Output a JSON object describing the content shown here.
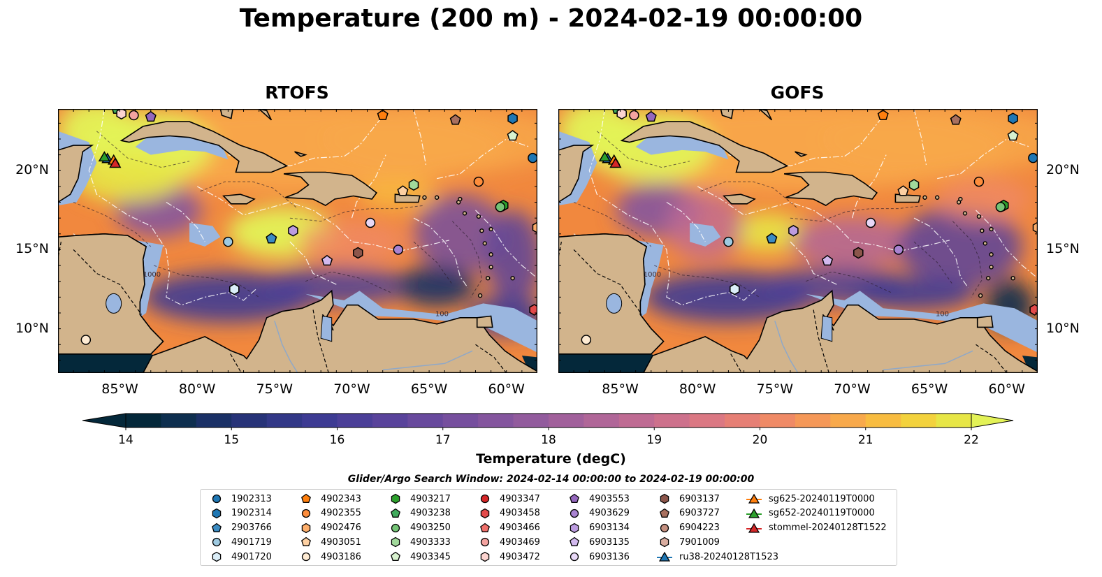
{
  "title": "Temperature (200 m) - 2024-02-19 00:00:00",
  "panels": [
    {
      "id": "rtofs",
      "title": "RTOFS"
    },
    {
      "id": "gofs",
      "title": "GOFS"
    }
  ],
  "map_extent": {
    "lon_min": -89,
    "lon_max": -58,
    "lat_min": 7.2,
    "lat_max": 23.9
  },
  "lon_ticks": [
    {
      "value": -85,
      "label": "85°W"
    },
    {
      "value": -80,
      "label": "80°W"
    },
    {
      "value": -75,
      "label": "75°W"
    },
    {
      "value": -70,
      "label": "70°W"
    },
    {
      "value": -65,
      "label": "65°W"
    },
    {
      "value": -60,
      "label": "60°W"
    }
  ],
  "lat_ticks": [
    {
      "value": 20,
      "label": "20°N"
    },
    {
      "value": 15,
      "label": "15°N"
    },
    {
      "value": 10,
      "label": "10°N"
    }
  ],
  "contour_labels": [
    "100",
    "1000"
  ],
  "colorbar": {
    "label": "Temperature (degC)",
    "min": 14,
    "max": 22,
    "step": 0.5,
    "ticks": [
      "14",
      "15",
      "16",
      "17",
      "18",
      "19",
      "20",
      "21",
      "22"
    ],
    "extend": "both",
    "colors": [
      "#04283a",
      "#0e2f4f",
      "#1a3066",
      "#273378",
      "#323887",
      "#3d3b93",
      "#4b3f98",
      "#59439b",
      "#68499d",
      "#764f9e",
      "#84559e",
      "#925b9d",
      "#a1609b",
      "#b06698",
      "#bf6b93",
      "#cd718c",
      "#db7883",
      "#e67f75",
      "#ef8a66",
      "#f59858",
      "#f8a94b",
      "#f8bc40",
      "#f3d23d",
      "#e7e646",
      "#e3f257"
    ]
  },
  "search_window": "Glider/Argo Search Window: 2024-02-14 00:00:00 to 2024-02-19 00:00:00",
  "legend": [
    {
      "label": "1902313",
      "marker": "circle",
      "color": "#1f77b4"
    },
    {
      "label": "1902314",
      "marker": "hexagon",
      "color": "#1f77b4"
    },
    {
      "label": "2903766",
      "marker": "pentagon",
      "color": "#3b8bc2"
    },
    {
      "label": "4901719",
      "marker": "circle",
      "color": "#9ecae1"
    },
    {
      "label": "4901720",
      "marker": "hexagon",
      "color": "#dbeef8"
    },
    {
      "label": "4902343",
      "marker": "pentagon",
      "color": "#ff7f0e"
    },
    {
      "label": "4902355",
      "marker": "circle",
      "color": "#fd8d3c"
    },
    {
      "label": "4902476",
      "marker": "hexagon",
      "color": "#fdae6b"
    },
    {
      "label": "4903051",
      "marker": "pentagon",
      "color": "#fdd0a2"
    },
    {
      "label": "4903186",
      "marker": "circle",
      "color": "#feebd3"
    },
    {
      "label": "4903217",
      "marker": "hexagon",
      "color": "#2ca02c"
    },
    {
      "label": "4903238",
      "marker": "pentagon",
      "color": "#41ab5d"
    },
    {
      "label": "4903250",
      "marker": "circle",
      "color": "#74c476"
    },
    {
      "label": "4903333",
      "marker": "hexagon",
      "color": "#a1d99b"
    },
    {
      "label": "4903345",
      "marker": "pentagon",
      "color": "#d8f2cf"
    },
    {
      "label": "4903347",
      "marker": "circle",
      "color": "#d62728"
    },
    {
      "label": "4903458",
      "marker": "hexagon",
      "color": "#e34a4a"
    },
    {
      "label": "4903466",
      "marker": "pentagon",
      "color": "#ef6f6a"
    },
    {
      "label": "4903469",
      "marker": "circle",
      "color": "#f4a3a0"
    },
    {
      "label": "4903472",
      "marker": "hexagon",
      "color": "#fcd3cf"
    },
    {
      "label": "4903553",
      "marker": "pentagon",
      "color": "#9467bd"
    },
    {
      "label": "4903629",
      "marker": "circle",
      "color": "#a983d1"
    },
    {
      "label": "6903134",
      "marker": "hexagon",
      "color": "#bc9ce0"
    },
    {
      "label": "6903135",
      "marker": "pentagon",
      "color": "#d2b9ee"
    },
    {
      "label": "6903136",
      "marker": "circle",
      "color": "#e8d8f7"
    },
    {
      "label": "6903137",
      "marker": "hexagon",
      "color": "#8c564b"
    },
    {
      "label": "6903727",
      "marker": "pentagon",
      "color": "#a8705f"
    },
    {
      "label": "6904223",
      "marker": "circle",
      "color": "#c49080"
    },
    {
      "label": "7901009",
      "marker": "hexagon",
      "color": "#d9ada0"
    },
    {
      "label": "ru38-20240128T1523",
      "marker": "triangle-line",
      "color": "#1f77b4"
    },
    {
      "label": "sg625-20240119T0000",
      "marker": "triangle-line",
      "color": "#ff7f0e"
    },
    {
      "label": "sg652-20240119T0000",
      "marker": "triangle-line",
      "color": "#2ca02c"
    },
    {
      "label": "stommel-20240128T1522",
      "marker": "triangle-line",
      "color": "#d62728"
    }
  ],
  "floats": [
    {
      "label": "1902313",
      "lon": -58.3,
      "lat": 20.8
    },
    {
      "label": "1902314",
      "lon": -59.6,
      "lat": 23.3
    },
    {
      "label": "2903766",
      "lon": -75.2,
      "lat": 15.7
    },
    {
      "label": "4901719",
      "lon": -78.0,
      "lat": 15.5
    },
    {
      "label": "4901720",
      "lon": -77.6,
      "lat": 12.5
    },
    {
      "label": "4902343",
      "lon": -68.0,
      "lat": 23.5
    },
    {
      "label": "4902355",
      "lon": -61.8,
      "lat": 19.3
    },
    {
      "label": "4902476",
      "lon": -58.0,
      "lat": 16.4
    },
    {
      "label": "4903051",
      "lon": -66.7,
      "lat": 18.7
    },
    {
      "label": "4903186",
      "lon": -87.2,
      "lat": 9.3
    },
    {
      "label": "4903217",
      "lon": -60.2,
      "lat": 17.8
    },
    {
      "label": "4903238",
      "lon": -85.2,
      "lat": 23.9
    },
    {
      "label": "4903250",
      "lon": -60.4,
      "lat": 17.7
    },
    {
      "label": "4903333",
      "lon": -66.0,
      "lat": 19.1
    },
    {
      "label": "4903345",
      "lon": -59.6,
      "lat": 22.2
    },
    {
      "label": "4903458",
      "lon": -58.2,
      "lat": 11.2
    },
    {
      "label": "4903469",
      "lon": -84.1,
      "lat": 23.5
    },
    {
      "label": "4903472",
      "lon": -84.9,
      "lat": 23.6
    },
    {
      "label": "4903553",
      "lon": -83.0,
      "lat": 23.4
    },
    {
      "label": "4903629",
      "lon": -67.0,
      "lat": 15.0
    },
    {
      "label": "6903134",
      "lon": -73.8,
      "lat": 16.2
    },
    {
      "label": "6903135",
      "lon": -71.6,
      "lat": 14.3
    },
    {
      "label": "6903136",
      "lon": -68.8,
      "lat": 16.7
    },
    {
      "label": "6903137",
      "lon": -69.6,
      "lat": 14.8
    },
    {
      "label": "6903727",
      "lon": -63.3,
      "lat": 23.2
    }
  ],
  "gliders": [
    {
      "label": "ru38-20240128T1523",
      "lon": -85.8,
      "lat": 20.7
    },
    {
      "label": "sg625-20240119T0000",
      "lon": -85.4,
      "lat": 20.6
    },
    {
      "label": "sg652-20240119T0000",
      "lon": -86.0,
      "lat": 20.8
    },
    {
      "label": "stommel-20240128T1522",
      "lon": -85.3,
      "lat": 20.4
    }
  ]
}
